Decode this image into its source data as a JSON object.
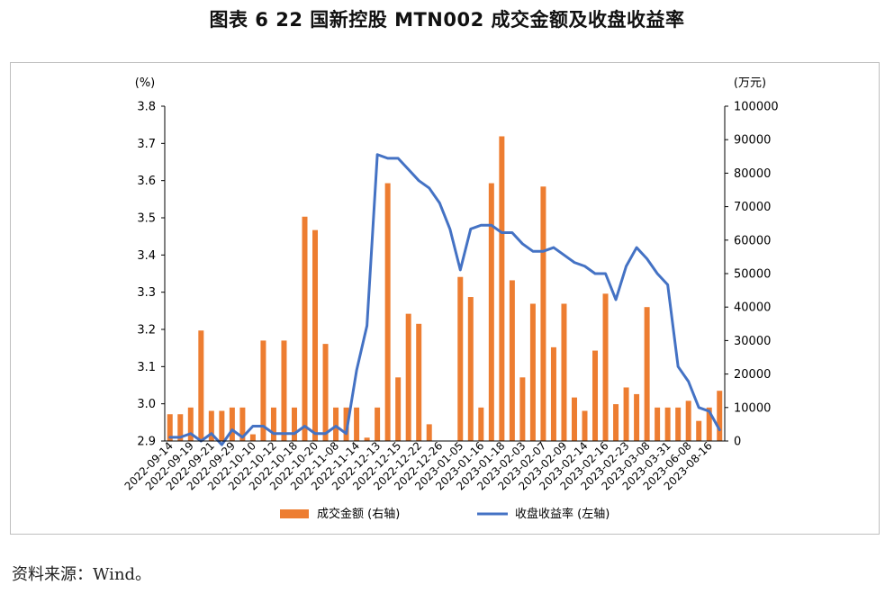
{
  "figure_title": "图表 6  22 国新控股 MTN002 成交金额及收盘收益率",
  "source_note": "资料来源：Wind。",
  "colors": {
    "bar": "#ED7D31",
    "line": "#4472C4",
    "axis": "#000000",
    "frame": "#BFBFBF"
  },
  "chart_data": {
    "type": "bar+line",
    "x_labels_shown": [
      "2022-09-14",
      "2022-09-19",
      "2022-09-21",
      "2022-09-29",
      "2022-10-10",
      "2022-10-12",
      "2022-10-18",
      "2022-10-20",
      "2022-11-08",
      "2022-11-14",
      "2022-12-13",
      "2022-12-15",
      "2022-12-22",
      "2022-12-26",
      "2023-01-05",
      "2023-01-16",
      "2023-01-18",
      "2023-02-03",
      "2023-02-07",
      "2023-02-09",
      "2023-02-14",
      "2023-02-16",
      "2023-02-23",
      "2023-03-08",
      "2023-03-31",
      "2023-06-08",
      "2023-08-16"
    ],
    "left_axis": {
      "unit_label": "(%)",
      "ylim": [
        2.9,
        3.8
      ],
      "ticks": [
        "2.9",
        "3.0",
        "3.1",
        "3.2",
        "3.3",
        "3.4",
        "3.5",
        "3.6",
        "3.7",
        "3.8"
      ]
    },
    "right_axis": {
      "unit_label": "(万元)",
      "ylim": [
        0,
        100000
      ],
      "ticks": [
        "0",
        "10000",
        "20000",
        "30000",
        "40000",
        "50000",
        "60000",
        "70000",
        "80000",
        "90000",
        "100000"
      ]
    },
    "series": [
      {
        "name": "成交金额 (右轴)",
        "type": "bar",
        "axis": "right",
        "values": [
          8000,
          8000,
          10000,
          33000,
          9000,
          9000,
          10000,
          10000,
          2000,
          30000,
          10000,
          30000,
          10000,
          67000,
          63000,
          29000,
          10000,
          10000,
          10000,
          1000,
          10000,
          77000,
          19000,
          38000,
          35000,
          5000,
          null,
          null,
          49000,
          43000,
          10000,
          77000,
          91000,
          48000,
          19000,
          41000,
          76000,
          28000,
          41000,
          13000,
          9000,
          27000,
          44000,
          11000,
          16000,
          14000,
          40000,
          10000,
          10000,
          10000,
          12000,
          6000,
          10000,
          15000
        ]
      },
      {
        "name": "收盘收益率 (左轴)",
        "type": "line",
        "axis": "left",
        "values": [
          2.91,
          2.91,
          2.92,
          2.9,
          2.92,
          2.89,
          2.93,
          2.91,
          2.94,
          2.94,
          2.92,
          2.92,
          2.92,
          2.94,
          2.92,
          2.92,
          2.94,
          2.92,
          3.09,
          3.21,
          3.67,
          3.66,
          3.66,
          3.63,
          3.6,
          3.58,
          3.54,
          3.47,
          3.36,
          3.47,
          3.48,
          3.48,
          3.46,
          3.46,
          3.43,
          3.41,
          3.41,
          3.42,
          3.4,
          3.38,
          3.37,
          3.35,
          3.35,
          3.28,
          3.37,
          3.42,
          3.39,
          3.35,
          3.32,
          3.1,
          3.06,
          2.99,
          2.98,
          2.93
        ]
      }
    ],
    "legend": {
      "position": "bottom"
    },
    "grid": false
  }
}
